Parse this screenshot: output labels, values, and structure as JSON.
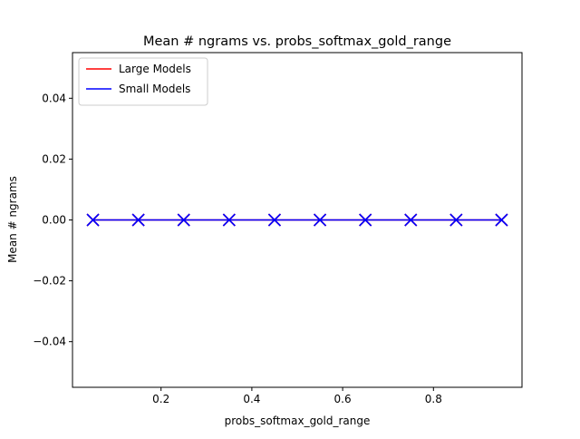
{
  "chart_data": {
    "type": "line",
    "title": "Mean # ngrams vs. probs_softmax_gold_range",
    "xlabel": "probs_softmax_gold_range",
    "ylabel": "Mean # ngrams",
    "xlim": [
      0.005,
      0.995
    ],
    "ylim": [
      -0.055,
      0.055
    ],
    "xticks": [
      0.2,
      0.4,
      0.6,
      0.8
    ],
    "xtick_labels": [
      "0.2",
      "0.4",
      "0.6",
      "0.8"
    ],
    "yticks": [
      -0.04,
      -0.02,
      0.0,
      0.02,
      0.04
    ],
    "ytick_labels": [
      "−0.04",
      "−0.02",
      "0.00",
      "0.02",
      "0.04"
    ],
    "grid": false,
    "legend_position": "top-left",
    "x": [
      0.05,
      0.15,
      0.25,
      0.35,
      0.45,
      0.55,
      0.65,
      0.75,
      0.85,
      0.95
    ],
    "series": [
      {
        "name": "Large Models",
        "color": "#ff0000",
        "marker": "x",
        "values": [
          0,
          0,
          0,
          0,
          0,
          0,
          0,
          0,
          0,
          0
        ]
      },
      {
        "name": "Small Models",
        "color": "#0000ff",
        "marker": "x",
        "values": [
          0,
          0,
          0,
          0,
          0,
          0,
          0,
          0,
          0,
          0
        ]
      }
    ]
  }
}
